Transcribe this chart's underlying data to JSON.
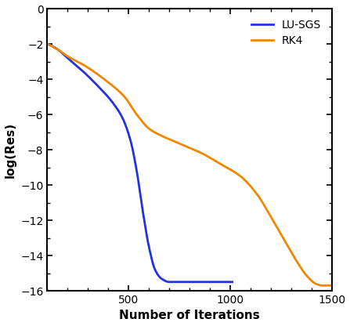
{
  "title": "",
  "xlabel": "Number of Iterations",
  "ylabel": "log(Res)",
  "xlim": [
    100,
    1500
  ],
  "ylim": [
    -16,
    0
  ],
  "yticks": [
    0,
    -2,
    -4,
    -6,
    -8,
    -10,
    -12,
    -14,
    -16
  ],
  "xticks": [
    500,
    1000,
    1500
  ],
  "lu_sgs_color": "#2233dd",
  "rk4_color": "#ee8800",
  "legend_labels": [
    "LU-SGS",
    "RK4"
  ],
  "background_color": "#ffffff",
  "linewidth": 2.0,
  "lu_sgs_keypoints_x": [
    100,
    150,
    200,
    280,
    350,
    420,
    470,
    510,
    540,
    570,
    600,
    630,
    660,
    700,
    800,
    900,
    1010
  ],
  "lu_sgs_keypoints_y": [
    -2.0,
    -2.3,
    -2.8,
    -3.6,
    -4.4,
    -5.3,
    -6.2,
    -7.5,
    -9.2,
    -11.5,
    -13.5,
    -14.8,
    -15.3,
    -15.5,
    -15.5,
    -15.5,
    -15.5
  ],
  "rk4_keypoints_x": [
    100,
    150,
    200,
    280,
    380,
    480,
    540,
    600,
    660,
    720,
    780,
    860,
    950,
    1050,
    1130,
    1200,
    1260,
    1320,
    1380,
    1420,
    1450,
    1500
  ],
  "rk4_keypoints_y": [
    -2.0,
    -2.3,
    -2.7,
    -3.2,
    -4.0,
    -5.0,
    -6.0,
    -6.8,
    -7.2,
    -7.5,
    -7.8,
    -8.2,
    -8.8,
    -9.5,
    -10.5,
    -11.8,
    -13.0,
    -14.2,
    -15.2,
    -15.6,
    -15.7,
    -15.7
  ]
}
